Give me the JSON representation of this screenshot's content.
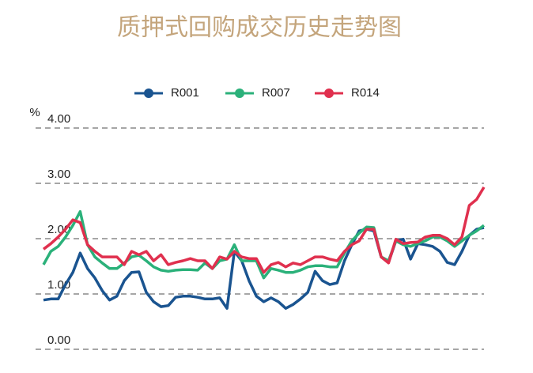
{
  "chart_data": {
    "type": "line",
    "title": "质押式回购成交历史走势图",
    "y_label": "%",
    "ylim": [
      0,
      4
    ],
    "yticks": [
      {
        "value": 0,
        "label": "0.00"
      },
      {
        "value": 1,
        "label": "1.00"
      },
      {
        "value": 2,
        "label": "2.00"
      },
      {
        "value": 3,
        "label": "3.00"
      },
      {
        "value": 4,
        "label": "4.00"
      }
    ],
    "grid": true,
    "legend": "top",
    "series": [
      {
        "name": "R001",
        "color": "#1a5490",
        "values": [
          0.89,
          0.91,
          0.91,
          1.17,
          1.39,
          1.74,
          1.46,
          1.29,
          1.06,
          0.89,
          0.96,
          1.24,
          1.39,
          1.4,
          1.03,
          0.86,
          0.77,
          0.79,
          0.94,
          0.96,
          0.96,
          0.94,
          0.91,
          0.91,
          0.93,
          0.74,
          1.77,
          1.6,
          1.24,
          0.96,
          0.86,
          0.93,
          0.86,
          0.74,
          0.81,
          0.91,
          1.03,
          1.41,
          1.24,
          1.17,
          1.2,
          1.6,
          1.89,
          2.14,
          2.17,
          2.14,
          1.67,
          1.57,
          1.96,
          1.99,
          1.63,
          1.91,
          1.89,
          1.86,
          1.77,
          1.57,
          1.53,
          1.77,
          2.06,
          2.17,
          2.2
        ]
      },
      {
        "name": "R007",
        "color": "#2bb17a",
        "values": [
          1.53,
          1.77,
          1.86,
          2.03,
          2.24,
          2.49,
          1.89,
          1.67,
          1.56,
          1.46,
          1.46,
          1.56,
          1.67,
          1.7,
          1.6,
          1.49,
          1.43,
          1.41,
          1.43,
          1.44,
          1.44,
          1.43,
          1.56,
          1.46,
          1.6,
          1.63,
          1.89,
          1.6,
          1.6,
          1.6,
          1.29,
          1.46,
          1.43,
          1.39,
          1.39,
          1.43,
          1.49,
          1.51,
          1.51,
          1.49,
          1.49,
          1.74,
          1.96,
          2.1,
          2.21,
          2.2,
          1.67,
          1.6,
          1.96,
          1.89,
          1.86,
          1.91,
          1.96,
          2.03,
          2.03,
          1.96,
          1.86,
          1.96,
          2.06,
          2.14,
          2.24
        ]
      },
      {
        "name": "R014",
        "color": "#e0304e",
        "values": [
          1.81,
          1.91,
          2.03,
          2.17,
          2.34,
          2.29,
          1.89,
          1.77,
          1.67,
          1.67,
          1.67,
          1.53,
          1.77,
          1.71,
          1.77,
          1.6,
          1.71,
          1.53,
          1.57,
          1.6,
          1.64,
          1.6,
          1.6,
          1.46,
          1.67,
          1.63,
          1.77,
          1.67,
          1.64,
          1.64,
          1.39,
          1.53,
          1.57,
          1.49,
          1.56,
          1.53,
          1.6,
          1.67,
          1.67,
          1.63,
          1.6,
          1.77,
          1.89,
          1.96,
          2.17,
          2.17,
          1.67,
          1.56,
          1.99,
          1.91,
          1.93,
          1.94,
          2.03,
          2.06,
          2.06,
          2.0,
          1.89,
          2.03,
          2.6,
          2.71,
          2.93
        ]
      }
    ]
  }
}
